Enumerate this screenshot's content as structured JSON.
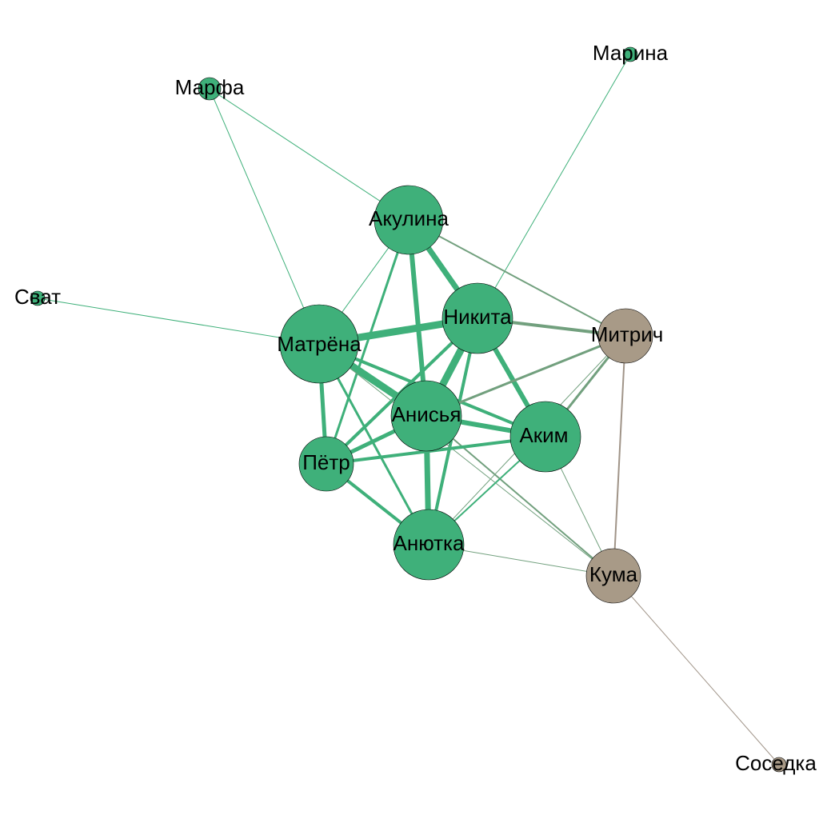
{
  "colors": {
    "green": "#3fb07a",
    "grey": "#a89a87",
    "green_edge": "#3fb07a",
    "mixed_edge": "#72a07e",
    "grey_edge": "#a09488"
  },
  "nodes": [
    {
      "id": "marina",
      "label": "Марина",
      "group": "green"
    },
    {
      "id": "marfa",
      "label": "Марфа",
      "group": "green"
    },
    {
      "id": "akulina",
      "label": "Акулина",
      "group": "green"
    },
    {
      "id": "svat",
      "label": "Сват",
      "group": "green"
    },
    {
      "id": "nikita",
      "label": "Никита",
      "group": "green"
    },
    {
      "id": "matrena",
      "label": "Матрёна",
      "group": "green"
    },
    {
      "id": "mitrich",
      "label": "Митрич",
      "group": "grey"
    },
    {
      "id": "anisya",
      "label": "Анисья",
      "group": "green"
    },
    {
      "id": "akim",
      "label": "Аким",
      "group": "green"
    },
    {
      "id": "petr",
      "label": "Пётр",
      "group": "green"
    },
    {
      "id": "anyutka",
      "label": "Анютка",
      "group": "green"
    },
    {
      "id": "kuma",
      "label": "Кума",
      "group": "grey"
    },
    {
      "id": "sosedka",
      "label": "Соседка",
      "group": "grey"
    }
  ],
  "edges": [
    {
      "source": "marfa",
      "target": "akulina"
    },
    {
      "source": "marfa",
      "target": "matrena"
    },
    {
      "source": "marina",
      "target": "nikita"
    },
    {
      "source": "svat",
      "target": "matrena"
    },
    {
      "source": "akulina",
      "target": "nikita"
    },
    {
      "source": "akulina",
      "target": "matrena"
    },
    {
      "source": "akulina",
      "target": "anisya"
    },
    {
      "source": "akulina",
      "target": "petr"
    },
    {
      "source": "akulina",
      "target": "mitrich"
    },
    {
      "source": "nikita",
      "target": "matrena"
    },
    {
      "source": "nikita",
      "target": "mitrich"
    },
    {
      "source": "nikita",
      "target": "anisya"
    },
    {
      "source": "nikita",
      "target": "akim"
    },
    {
      "source": "nikita",
      "target": "petr"
    },
    {
      "source": "nikita",
      "target": "anyutka"
    },
    {
      "source": "matrena",
      "target": "anisya"
    },
    {
      "source": "matrena",
      "target": "petr"
    },
    {
      "source": "matrena",
      "target": "akim"
    },
    {
      "source": "matrena",
      "target": "anyutka"
    },
    {
      "source": "matrena",
      "target": "kuma"
    },
    {
      "source": "anisya",
      "target": "petr"
    },
    {
      "source": "anisya",
      "target": "akim"
    },
    {
      "source": "anisya",
      "target": "anyutka"
    },
    {
      "source": "anisya",
      "target": "mitrich"
    },
    {
      "source": "anisya",
      "target": "kuma"
    },
    {
      "source": "petr",
      "target": "akim"
    },
    {
      "source": "petr",
      "target": "anyutka"
    },
    {
      "source": "akim",
      "target": "anyutka"
    },
    {
      "source": "akim",
      "target": "mitrich"
    },
    {
      "source": "akim",
      "target": "kuma"
    },
    {
      "source": "anyutka",
      "target": "kuma"
    },
    {
      "source": "anyutka",
      "target": "mitrich"
    },
    {
      "source": "mitrich",
      "target": "kuma"
    },
    {
      "source": "kuma",
      "target": "sosedka"
    }
  ]
}
